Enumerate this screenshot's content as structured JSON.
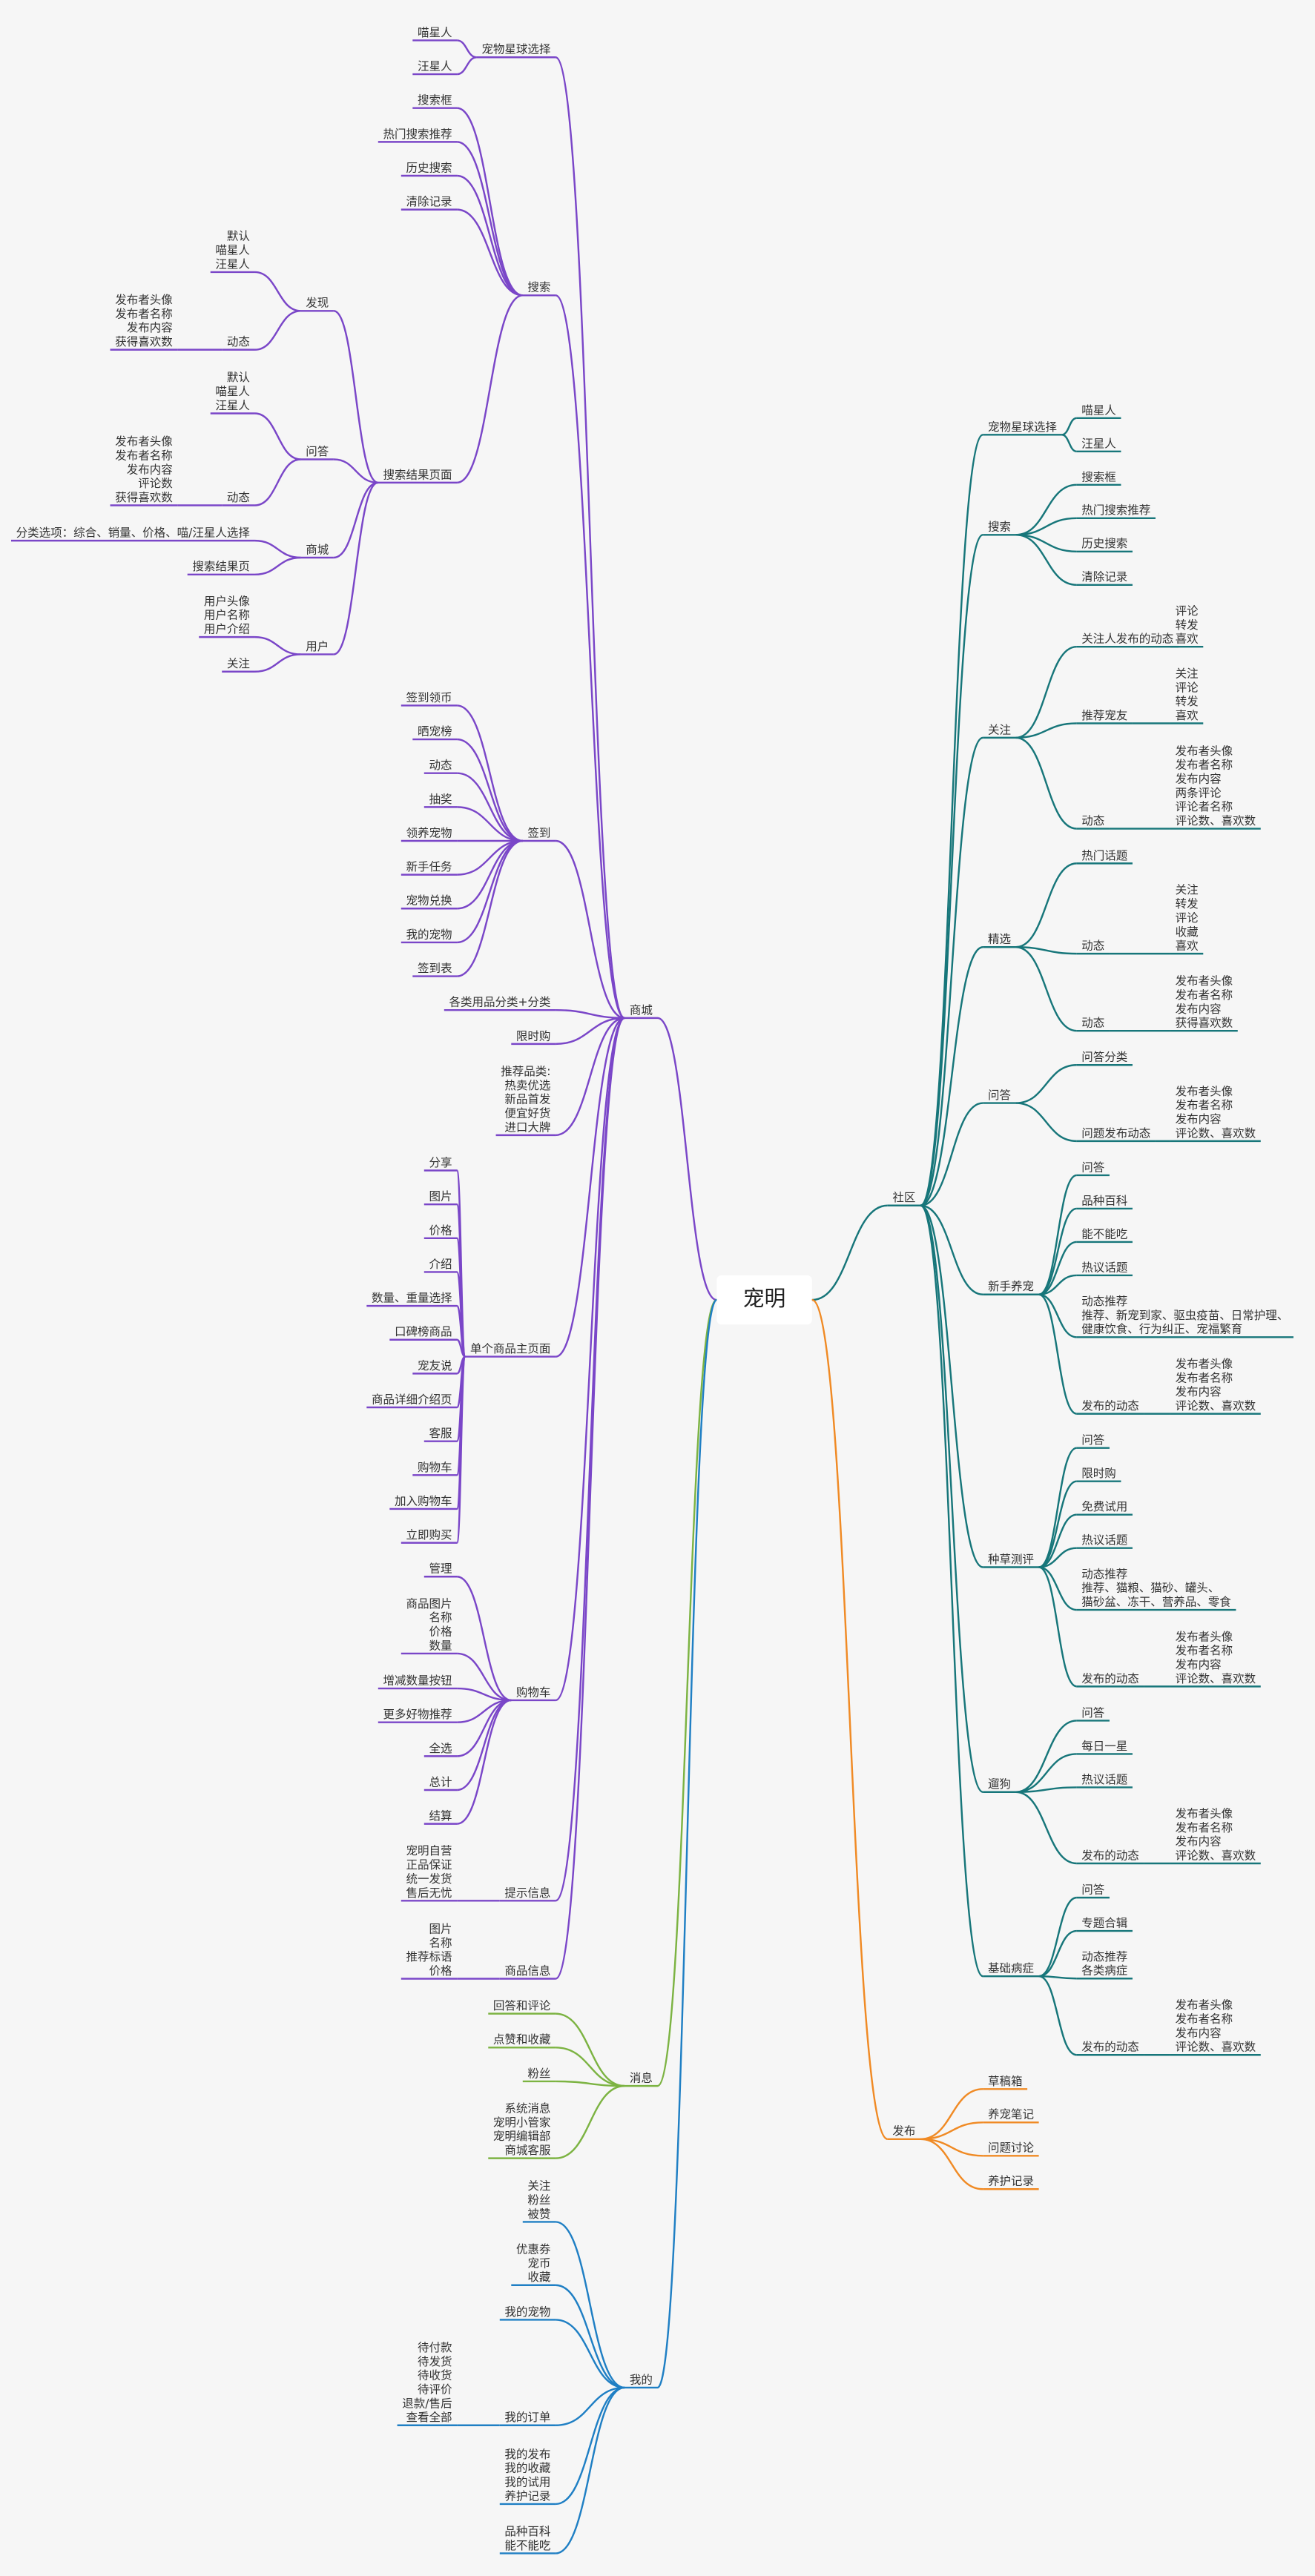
{
  "root": {
    "label": "宠明",
    "left": [
      {
        "label": "商城",
        "color": "#7a46c8",
        "children": [
          {
            "label": "宠物星球选择",
            "children": [
              {
                "label": "喵星人"
              },
              {
                "label": "汪星人"
              }
            ]
          },
          {
            "label": "搜索",
            "children": [
              {
                "label": "搜索框"
              },
              {
                "label": "热门搜索推荐"
              },
              {
                "label": "历史搜索"
              },
              {
                "label": "清除记录"
              },
              {
                "label": "搜索结果页面",
                "children": [
                  {
                    "label": "发现",
                    "children": [
                      {
                        "label": [
                          "默认",
                          "喵星人",
                          "汪星人"
                        ]
                      },
                      {
                        "label": "动态",
                        "children": [
                          {
                            "label": [
                              "发布者头像",
                              "发布者名称",
                              "发布内容",
                              "获得喜欢数"
                            ]
                          }
                        ]
                      }
                    ]
                  },
                  {
                    "label": "问答",
                    "children": [
                      {
                        "label": [
                          "默认",
                          "喵星人",
                          "汪星人"
                        ]
                      },
                      {
                        "label": "动态",
                        "children": [
                          {
                            "label": [
                              "发布者头像",
                              "发布者名称",
                              "发布内容",
                              "评论数",
                              "获得喜欢数"
                            ]
                          }
                        ]
                      }
                    ]
                  },
                  {
                    "label": "商城",
                    "children": [
                      {
                        "label": "分类选项：综合、销量、价格、喵/汪星人选择"
                      },
                      {
                        "label": "搜索结果页"
                      }
                    ]
                  },
                  {
                    "label": "用户",
                    "children": [
                      {
                        "label": [
                          "用户头像",
                          "用户名称",
                          "用户介绍"
                        ]
                      },
                      {
                        "label": "关注"
                      }
                    ]
                  }
                ]
              }
            ]
          },
          {
            "label": "签到",
            "children": [
              {
                "label": "签到领币"
              },
              {
                "label": "晒宠榜"
              },
              {
                "label": "动态"
              },
              {
                "label": "抽奖"
              },
              {
                "label": "领养宠物"
              },
              {
                "label": "新手任务"
              },
              {
                "label": "宠物兑换"
              },
              {
                "label": "我的宠物"
              },
              {
                "label": "签到表"
              }
            ]
          },
          {
            "label": "各类用品分类+分类"
          },
          {
            "label": "限时购"
          },
          {
            "label": [
              "推荐品类:",
              "热卖优选",
              "新品首发",
              "便宜好货",
              "进口大牌"
            ]
          },
          {
            "label": "单个商品主页面",
            "children": [
              {
                "label": "分享"
              },
              {
                "label": "图片"
              },
              {
                "label": "价格"
              },
              {
                "label": "介绍"
              },
              {
                "label": "数量、重量选择"
              },
              {
                "label": "口碑榜商品"
              },
              {
                "label": "宠友说"
              },
              {
                "label": "商品详细介绍页"
              },
              {
                "label": "客服"
              },
              {
                "label": "购物车"
              },
              {
                "label": "加入购物车"
              },
              {
                "label": "立即购买"
              }
            ]
          },
          {
            "label": "购物车",
            "children": [
              {
                "label": "管理"
              },
              {
                "label": [
                  "商品图片",
                  "名称",
                  "价格",
                  "数量"
                ]
              },
              {
                "label": "增减数量按钮"
              },
              {
                "label": "更多好物推荐"
              },
              {
                "label": "全选"
              },
              {
                "label": "总计"
              },
              {
                "label": "结算"
              }
            ]
          },
          {
            "label": "提示信息",
            "children": [
              {
                "label": [
                  "宠明自营",
                  "正品保证",
                  "统一发货",
                  "售后无忧"
                ]
              }
            ]
          },
          {
            "label": "商品信息",
            "children": [
              {
                "label": [
                  "图片",
                  "名称",
                  "推荐标语",
                  "价格"
                ]
              }
            ]
          }
        ]
      },
      {
        "label": "消息",
        "color": "#7cb342",
        "children": [
          {
            "label": "回答和评论"
          },
          {
            "label": "点赞和收藏"
          },
          {
            "label": "粉丝"
          },
          {
            "label": [
              "系统消息",
              "宠明小管家",
              "宠明编辑部",
              "商城客服"
            ]
          }
        ]
      },
      {
        "label": "我的",
        "color": "#1f7fc4",
        "children": [
          {
            "label": [
              "关注",
              "粉丝",
              "被赞"
            ]
          },
          {
            "label": [
              "优惠券",
              "宠币",
              "收藏"
            ]
          },
          {
            "label": "我的宠物"
          },
          {
            "label": "我的订单",
            "children": [
              {
                "label": [
                  "待付款",
                  "待发货",
                  "待收货",
                  "待评价",
                  "退款/售后",
                  "查看全部"
                ]
              }
            ]
          },
          {
            "label": [
              "我的发布",
              "我的收藏",
              "我的试用",
              "养护记录"
            ]
          },
          {
            "label": [
              "品种百科",
              "能不能吃"
            ]
          }
        ]
      }
    ],
    "right": [
      {
        "label": "社区",
        "color": "#17767a",
        "children": [
          {
            "label": "宠物星球选择",
            "children": [
              {
                "label": "喵星人"
              },
              {
                "label": "汪星人"
              }
            ]
          },
          {
            "label": "搜索",
            "children": [
              {
                "label": "搜索框"
              },
              {
                "label": "热门搜索推荐"
              },
              {
                "label": "历史搜索"
              },
              {
                "label": "清除记录"
              }
            ]
          },
          {
            "label": "关注",
            "children": [
              {
                "label": "关注人发布的动态",
                "children": [
                  {
                    "label": [
                      "评论",
                      "转发",
                      "喜欢"
                    ]
                  }
                ]
              },
              {
                "label": "推荐宠友",
                "children": [
                  {
                    "label": [
                      "关注",
                      "评论",
                      "转发",
                      "喜欢"
                    ]
                  }
                ]
              },
              {
                "label": "动态",
                "children": [
                  {
                    "label": [
                      "发布者头像",
                      "发布者名称",
                      "发布内容",
                      "两条评论",
                      "评论者名称",
                      "评论数、喜欢数"
                    ]
                  }
                ]
              }
            ]
          },
          {
            "label": "精选",
            "children": [
              {
                "label": "热门话题"
              },
              {
                "label": "动态",
                "children": [
                  {
                    "label": [
                      "关注",
                      "转发",
                      "评论",
                      "收藏",
                      "喜欢"
                    ]
                  }
                ]
              },
              {
                "label": "动态",
                "children": [
                  {
                    "label": [
                      "发布者头像",
                      "发布者名称",
                      "发布内容",
                      "获得喜欢数"
                    ]
                  }
                ]
              }
            ]
          },
          {
            "label": "问答",
            "children": [
              {
                "label": "问答分类"
              },
              {
                "label": "问题发布动态",
                "children": [
                  {
                    "label": [
                      "发布者头像",
                      "发布者名称",
                      "发布内容",
                      "评论数、喜欢数"
                    ]
                  }
                ]
              }
            ]
          },
          {
            "label": "新手养宠",
            "children": [
              {
                "label": "问答"
              },
              {
                "label": "品种百科"
              },
              {
                "label": "能不能吃"
              },
              {
                "label": "热议话题"
              },
              {
                "label": [
                  "动态推荐",
                  "推荐、新宠到家、驱虫疫苗、日常护理、",
                  "健康饮食、行为纠正、宠福繁育"
                ]
              },
              {
                "label": "发布的动态",
                "children": [
                  {
                    "label": [
                      "发布者头像",
                      "发布者名称",
                      "发布内容",
                      "评论数、喜欢数"
                    ]
                  }
                ]
              }
            ]
          },
          {
            "label": "种草测评",
            "children": [
              {
                "label": "问答"
              },
              {
                "label": "限时购"
              },
              {
                "label": "免费试用"
              },
              {
                "label": "热议话题"
              },
              {
                "label": [
                  "动态推荐",
                  "推荐、猫粮、猫砂、罐头、",
                  "猫砂盆、冻干、营养品、零食"
                ]
              },
              {
                "label": "发布的动态",
                "children": [
                  {
                    "label": [
                      "发布者头像",
                      "发布者名称",
                      "发布内容",
                      "评论数、喜欢数"
                    ]
                  }
                ]
              }
            ]
          },
          {
            "label": "遛狗",
            "children": [
              {
                "label": "问答"
              },
              {
                "label": "每日一星"
              },
              {
                "label": "热议话题"
              },
              {
                "label": "发布的动态",
                "children": [
                  {
                    "label": [
                      "发布者头像",
                      "发布者名称",
                      "发布内容",
                      "评论数、喜欢数"
                    ]
                  }
                ]
              }
            ]
          },
          {
            "label": "基础病症",
            "children": [
              {
                "label": "问答"
              },
              {
                "label": "专题合辑"
              },
              {
                "label": [
                  "动态推荐",
                  "各类病症"
                ]
              },
              {
                "label": "发布的动态",
                "children": [
                  {
                    "label": [
                      "发布者头像",
                      "发布者名称",
                      "发布内容",
                      "评论数、喜欢数"
                    ]
                  }
                ]
              }
            ]
          }
        ]
      },
      {
        "label": "发布",
        "color": "#f08a24",
        "children": [
          {
            "label": "草稿箱"
          },
          {
            "label": "养宠笔记"
          },
          {
            "label": "问题讨论"
          },
          {
            "label": "养护记录"
          }
        ]
      }
    ]
  }
}
